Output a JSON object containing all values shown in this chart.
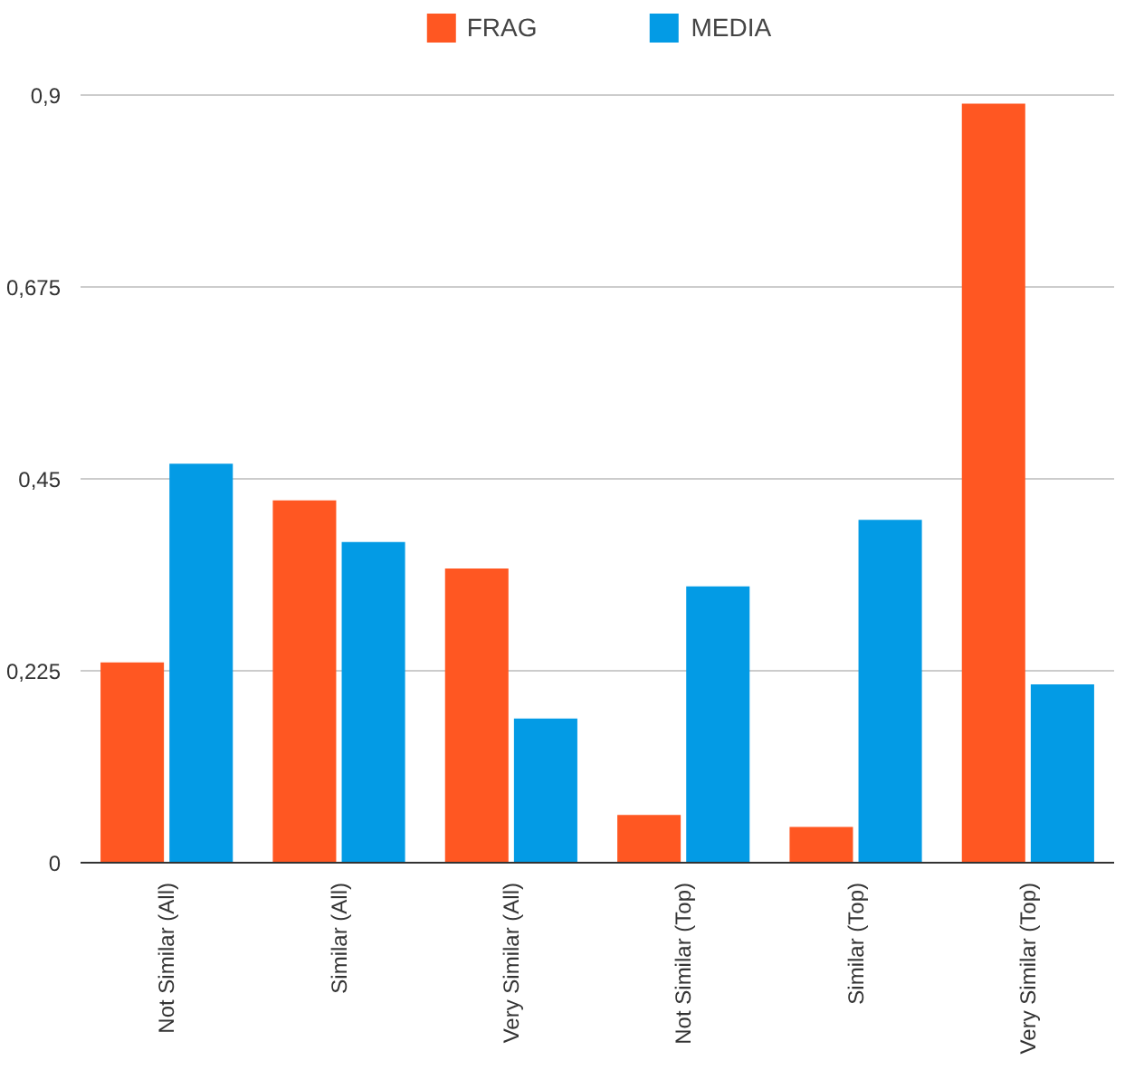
{
  "chart_data": {
    "type": "bar",
    "categories": [
      "Not Similar (All)",
      "Similar (All)",
      "Very Similar (All)",
      "Not Similar (Top)",
      "Similar (Top)",
      "Very Similar (Top)"
    ],
    "series": [
      {
        "name": "FRAG",
        "color": "#ff5722",
        "values": [
          0.235,
          0.425,
          0.345,
          0.056,
          0.042,
          0.89
        ]
      },
      {
        "name": "MEDIA",
        "color": "#039be5",
        "values": [
          0.468,
          0.376,
          0.169,
          0.324,
          0.402,
          0.209
        ]
      }
    ],
    "ylim": [
      0,
      1.0
    ],
    "yticks": [
      {
        "value": 0,
        "label": "0"
      },
      {
        "value": 0.225,
        "label": "0,225"
      },
      {
        "value": 0.45,
        "label": "0,45"
      },
      {
        "value": 0.675,
        "label": "0,675"
      },
      {
        "value": 0.9,
        "label": "0,9"
      }
    ],
    "grid": "y",
    "legend": "top"
  }
}
